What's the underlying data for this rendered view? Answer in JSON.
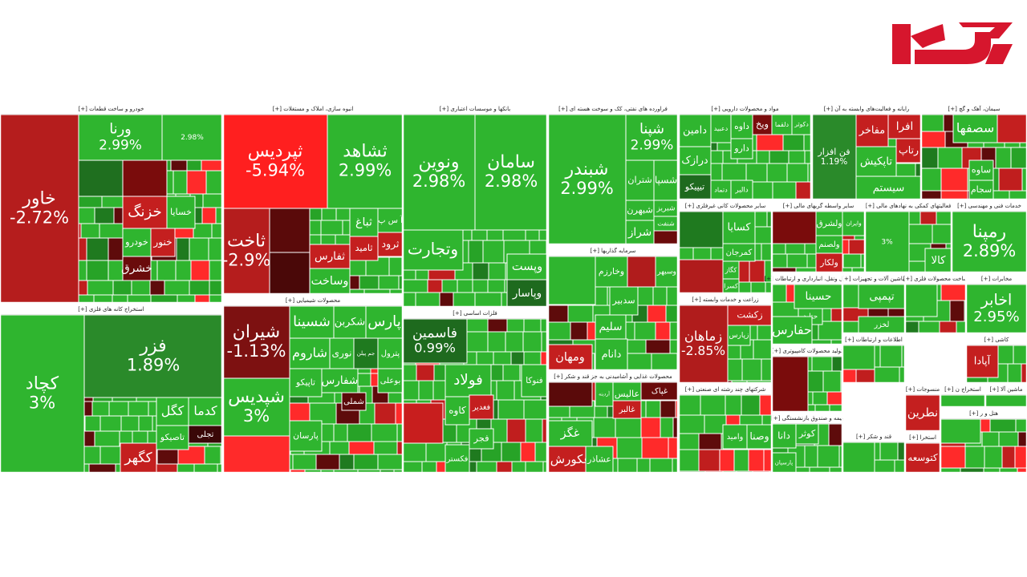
{
  "chart_data": {
    "type": "treemap",
    "sectors": [
      {
        "title": "خودرو و ساخت قطعات [+]",
        "tiles": [
          {
            "label": "خاور",
            "change": "-2.72%",
            "color": "#b51d1d"
          },
          {
            "label": "ورنا",
            "change": "2.99%",
            "color": "#2fb52f"
          },
          {
            "change": "2.98%",
            "color": "#2fb52f"
          },
          {
            "color": "#1f6f1f"
          },
          {
            "color": "#7a0c0c"
          },
          {
            "label": "خزنگ",
            "color": "#c41f1f"
          },
          {
            "label": "خسایا",
            "color": "#2fb52f"
          },
          {
            "label": "خودرو",
            "color": "#2fb52f"
          },
          {
            "label": "خنور",
            "color": "#c41f1f"
          },
          {
            "label": "خشرق",
            "color": "#6a0b0b"
          }
        ]
      },
      {
        "title": "استخراج کانه های فلزی [+]",
        "tiles": [
          {
            "label": "کچاد",
            "change": "3%",
            "color": "#2fb52f"
          },
          {
            "label": "فزر",
            "change": "1.89%",
            "color": "#2a8a2a"
          },
          {
            "label": "کگل",
            "color": "#2fb52f"
          },
          {
            "label": "کدما",
            "color": "#2fb52f"
          },
          {
            "label": "تجلی",
            "color": "#3a0808"
          },
          {
            "label": "تاصیکو",
            "color": "#2fb52f"
          },
          {
            "label": "کگهر",
            "color": "#c41f1f"
          }
        ]
      },
      {
        "title": "انبوه سازی، املاک و مستغلات [+]",
        "tiles": [
          {
            "label": "ثپردیس",
            "change": "-5.94%",
            "color": "#ff1f1f"
          },
          {
            "label": "ثشاهد",
            "change": "2.99%",
            "color": "#2fb52f"
          },
          {
            "label": "ثاخت",
            "change": "-2.9%",
            "color": "#b51d1d"
          },
          {
            "color": "#5a0a0a"
          },
          {
            "color": "#4a0808"
          },
          {
            "label": "ثفارس",
            "color": "#c41f1f"
          },
          {
            "label": "ثامید",
            "color": "#c41f1f"
          },
          {
            "label": "ثباغ",
            "color": "#2fb52f"
          },
          {
            "label": "آ س پ",
            "color": "#2fb52f"
          },
          {
            "label": "ثرود",
            "color": "#c41f1f"
          },
          {
            "label": "وساخت",
            "color": "#2fb52f"
          }
        ]
      },
      {
        "title": "محصولات شیمیایی [+]",
        "tiles": [
          {
            "label": "شیران",
            "change": "-1.13%",
            "color": "#7d1111"
          },
          {
            "label": "شپدیس",
            "change": "3%",
            "color": "#2fb52f"
          },
          {
            "color": "#ff2a2a"
          },
          {
            "label": "شسینا",
            "color": "#2fb52f"
          },
          {
            "label": "شکربن",
            "color": "#2fb52f"
          },
          {
            "label": "پارس",
            "color": "#2fb52f"
          },
          {
            "label": "شاروم",
            "color": "#2fb52f"
          },
          {
            "label": "نوری",
            "color": "#2fb52f"
          },
          {
            "label": "جم پیلن",
            "color": "#1f7a1f"
          },
          {
            "label": "پترول",
            "color": "#2fb52f"
          },
          {
            "label": "تاپیکو",
            "color": "#2fb52f"
          },
          {
            "label": "شفارس",
            "color": "#2fb52f"
          },
          {
            "label": "بوعلی",
            "color": "#2fb52f"
          },
          {
            "label": "شملی",
            "color": "#5a0a0a"
          },
          {
            "label": "پارسان",
            "color": "#2fb52f"
          }
        ]
      },
      {
        "title": "بانکها و موسسات اعتباری [+]",
        "tiles": [
          {
            "label": "ونوین",
            "change": "2.98%",
            "color": "#2fb52f"
          },
          {
            "label": "سامان",
            "change": "2.98%",
            "color": "#2fb52f"
          },
          {
            "label": "وتجارت",
            "color": "#2fb52f"
          },
          {
            "label": "وپست",
            "color": "#2fb52f"
          },
          {
            "label": "وپاسار",
            "color": "#1e6a1e"
          }
        ]
      },
      {
        "title": "فلزات اساسی [+]",
        "tiles": [
          {
            "label": "فاسمین",
            "change": "0.99%",
            "color": "#1e6a1e"
          },
          {
            "label": "فولاد",
            "color": "#2fb52f"
          },
          {
            "label": "فنوکا",
            "color": "#2fb52f"
          },
          {
            "label": "کاوه",
            "color": "#2fb52f"
          },
          {
            "label": "فغدیر",
            "color": "#c41f1f"
          },
          {
            "color": "#c81e1e"
          },
          {
            "label": "فکستر",
            "color": "#2fb52f"
          },
          {
            "label": "فجر",
            "color": "#2fb52f"
          }
        ]
      },
      {
        "title": "فراورده های نفتی، کک و سوخت هسته ای [+]",
        "tiles": [
          {
            "label": "شبندر",
            "change": "2.99%",
            "color": "#2fb52f"
          },
          {
            "label": "شپنا",
            "change": "2.99%",
            "color": "#2fb52f"
          },
          {
            "label": "شتران",
            "color": "#2fb52f"
          },
          {
            "label": "شسپا",
            "color": "#2fb52f"
          },
          {
            "label": "شبهرن",
            "color": "#2fb52f"
          },
          {
            "label": "شبریز",
            "color": "#2fb52f"
          },
          {
            "label": "شنفت",
            "color": "#2fb52f"
          },
          {
            "label": "شراز",
            "color": "#2fb52f"
          },
          {
            "color": "#6a0b0b"
          }
        ]
      },
      {
        "title": "سرمایه گذاریها [+]",
        "tiles": [
          {
            "color": "#2fb52f"
          },
          {
            "label": "وخارزم",
            "color": "#2fb52f"
          },
          {
            "color": "#b01c1c"
          },
          {
            "label": "وسبهر",
            "color": "#2fb52f"
          },
          {
            "label": "سدبیر",
            "color": "#2fb52f"
          },
          {
            "label": "سلیم",
            "color": "#2fb52f"
          },
          {
            "label": "دانام",
            "color": "#2fb52f"
          },
          {
            "label": "ومهان",
            "color": "#c41f1f"
          }
        ]
      },
      {
        "title": "محصولات غذایی و آشامیدنی به جز قند و شکر [+]",
        "tiles": [
          {
            "color": "#5a0a0a"
          },
          {
            "label": "آردینه",
            "color": "#2fb52f"
          },
          {
            "label": "عالیس",
            "color": "#2fb52f"
          },
          {
            "label": "غپاک",
            "color": "#6a0b0b"
          },
          {
            "label": "غالبر",
            "color": "#c41f1f"
          },
          {
            "label": "غگز",
            "color": "#2fb52f"
          },
          {
            "label": "غکورش",
            "color": "#c41f1f"
          },
          {
            "label": "عشاذر",
            "color": "#2fb52f"
          }
        ]
      },
      {
        "title": "مواد و محصولات دارویی [+]",
        "tiles": [
          {
            "label": "دامین",
            "color": "#2fb52f"
          },
          {
            "label": "دعبید",
            "color": "#2fb52f"
          },
          {
            "label": "داوه",
            "color": "#2fb52f"
          },
          {
            "label": "ویخ",
            "color": "#7a0c0c"
          },
          {
            "label": "دلقما",
            "color": "#2fb52f"
          },
          {
            "label": "دکوثر",
            "color": "#2fb52f"
          },
          {
            "label": "دارو",
            "color": "#2fb52f"
          },
          {
            "label": "درازک",
            "color": "#2fb52f"
          },
          {
            "label": "تیپیکو",
            "color": "#1e6a1e"
          },
          {
            "label": "دتماد",
            "color": "#2fb52f"
          },
          {
            "label": "دالبر",
            "color": "#2fb52f"
          }
        ]
      },
      {
        "title": "رایانه و فعالیت‌های وابسته به آن [+]",
        "tiles": [
          {
            "label": "فن افزار",
            "change": "1.19%",
            "color": "#2a8a2a"
          },
          {
            "label": "مفاخر",
            "color": "#c41f1f"
          },
          {
            "label": "افرا",
            "color": "#c41f1f"
          },
          {
            "label": "تاپکیش",
            "color": "#2fb52f"
          },
          {
            "label": "رتاپ",
            "color": "#c41f1f"
          },
          {
            "label": "سیستم",
            "color": "#2fb52f"
          }
        ]
      },
      {
        "title": "سیمان، آهک و گچ [+]",
        "tiles": [
          {
            "label": "سصفها",
            "color": "#2fb52f"
          },
          {
            "color": "#c41f1f"
          },
          {
            "label": "ساوه",
            "color": "#2fb52f"
          },
          {
            "label": "سجام",
            "color": "#2fb52f"
          }
        ]
      },
      {
        "title": "سایر محصولات کانی غیرفلزی [+]",
        "tiles": [
          {
            "color": "#1f7a1f"
          },
          {
            "label": "کسایا",
            "color": "#2fb52f"
          },
          {
            "label": "کمرجان",
            "color": "#2fb52f"
          },
          {
            "label": "کگاز",
            "color": "#2fb52f"
          },
          {
            "color": "#b01c1c"
          },
          {
            "label": "کسرا",
            "color": "#2fb52f"
          }
        ]
      },
      {
        "title": "سایر واسطه گریهای مالی [+]",
        "tiles": [
          {
            "color": "#7a0c0c"
          },
          {
            "label": "ولشرق",
            "color": "#2fb52f"
          },
          {
            "label": "وایران",
            "color": "#2fb52f"
          },
          {
            "label": "ولصنم",
            "color": "#2fb52f"
          },
          {
            "label": "ولکار",
            "color": "#c41f1f"
          }
        ]
      },
      {
        "title": "فعالیتهای کمکی به نهادهای مالی [+]",
        "tiles": [
          {
            "change": "3%",
            "color": "#2fb52f"
          },
          {
            "label": "کالا",
            "color": "#2fb52f"
          }
        ]
      },
      {
        "title": "خدمات فنی و مهندسی [+]",
        "tiles": [
          {
            "label": "رمپنا",
            "change": "2.89%",
            "color": "#2fb52f"
          }
        ]
      },
      {
        "title": "زراعت و خدمات وابسته [+]",
        "tiles": [
          {
            "label": "زماهان",
            "change": "-2.85%",
            "color": "#b01c1c"
          },
          {
            "label": "زکشت",
            "color": "#c41f1f"
          },
          {
            "label": "زپارس",
            "color": "#2fb52f"
          }
        ]
      },
      {
        "title": "حمل ونقل، انبارداری و ارتباطات [+]",
        "tiles": [
          {
            "label": "حسینا",
            "color": "#2fb52f"
          },
          {
            "label": "حتاید",
            "color": "#2fb52f"
          },
          {
            "label": "حفارس",
            "color": "#2fb52f"
          }
        ]
      },
      {
        "title": "ماشین آلات و تجهیزات [+]",
        "tiles": [
          {
            "label": "تپمپی",
            "color": "#2fb52f"
          },
          {
            "label": "لخزر",
            "color": "#2fb52f"
          }
        ]
      },
      {
        "title": "ساخت محصولات فلزی [+]",
        "tiles": [
          {
            "color": "#2fb52f"
          }
        ]
      },
      {
        "title": "مخابرات [+]",
        "tiles": [
          {
            "label": "اخابر",
            "change": "2.95%",
            "color": "#2fb52f"
          }
        ]
      },
      {
        "title": "تولید محصولات کامپیوتری [+]",
        "tiles": [
          {
            "color": "#7a0c0c"
          }
        ]
      },
      {
        "title": "اطلاعات و ارتباطات [+]",
        "tiles": [
          {
            "color": "#2fb52f"
          }
        ]
      },
      {
        "title": "کاشی [+]",
        "tiles": [
          {
            "label": "آپادا",
            "color": "#c41f1f"
          }
        ]
      },
      {
        "title": "شرکتهای چند رشته ای صنعتی [+]",
        "tiles": [
          {
            "label": "وامید",
            "color": "#2fb52f"
          },
          {
            "label": "وصنا",
            "color": "#2fb52f"
          }
        ]
      },
      {
        "title": "بیمه و صندوق بازنشستگی [+]",
        "tiles": [
          {
            "label": "دانا",
            "color": "#2fb52f"
          },
          {
            "label": "کوثر",
            "color": "#2fb52f"
          },
          {
            "label": "پارسیان",
            "color": "#2fb52f"
          }
        ]
      },
      {
        "title": "قند و شکر [+]",
        "tiles": [
          {
            "color": "#2fb52f"
          }
        ]
      },
      {
        "title": "منسوجات [+]",
        "tiles": [
          {
            "label": "نطرین",
            "color": "#c41f1f"
          }
        ]
      },
      {
        "title": "استخراج ن [+]",
        "tiles": [
          {
            "color": "#2fb52f"
          }
        ]
      },
      {
        "title": "ماشین آلا [+]",
        "tiles": [
          {
            "color": "#2fb52f"
          }
        ]
      },
      {
        "title": "استخرا [+]",
        "tiles": [
          {
            "label": "کتوسعه",
            "color": "#c41f1f"
          }
        ]
      },
      {
        "title": "هتل و ر [+]",
        "tiles": [
          {
            "color": "#2fb52f"
          }
        ]
      }
    ]
  }
}
